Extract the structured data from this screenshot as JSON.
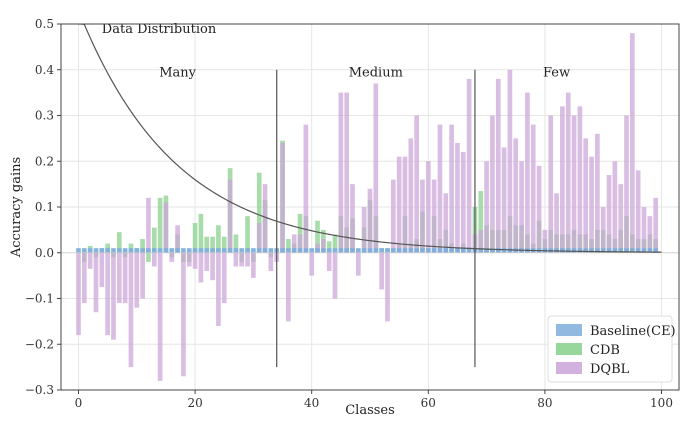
{
  "chart_data": {
    "type": "bar",
    "xlabel": "Classes",
    "ylabel": "Accuracy gains",
    "xlim": [
      -3,
      103
    ],
    "ylim": [
      -0.3,
      0.5
    ],
    "xticks": [
      0,
      20,
      40,
      60,
      80,
      100
    ],
    "yticks": [
      -0.3,
      -0.2,
      -0.1,
      0.0,
      0.1,
      0.2,
      0.3,
      0.4,
      0.5
    ],
    "grid": true,
    "legend_position": "bottom-right",
    "annotations": {
      "curve_label": "Data Distribution",
      "regions": [
        {
          "label": "Many",
          "x": 17
        },
        {
          "label": "Medium",
          "x": 51
        },
        {
          "label": "Few",
          "x": 82
        }
      ],
      "dividers": [
        34,
        68
      ]
    },
    "curve": {
      "name": "Data Distribution",
      "y_at_0": 0.53,
      "decay": 0.06,
      "floor": 0.0
    },
    "series": [
      {
        "name": "Baseline(CE)",
        "color": "#7faedc",
        "values": [
          0.01,
          0.01,
          0.01,
          0.01,
          0.01,
          0.01,
          0.01,
          0.01,
          0.01,
          0.01,
          0.01,
          0.01,
          0.01,
          0.01,
          0.01,
          0.01,
          0.01,
          0.01,
          0.01,
          0.01,
          0.01,
          0.01,
          0.01,
          0.01,
          0.01,
          0.01,
          0.01,
          0.01,
          0.01,
          0.01,
          0.01,
          0.01,
          0.01,
          0.01,
          0.01,
          0.01,
          0.01,
          0.01,
          0.01,
          0.01,
          0.01,
          0.01,
          0.01,
          0.01,
          0.01,
          0.01,
          0.01,
          0.01,
          0.01,
          0.01,
          0.01,
          0.01,
          0.01,
          0.01,
          0.01,
          0.01,
          0.01,
          0.01,
          0.01,
          0.01,
          0.01,
          0.01,
          0.01,
          0.01,
          0.01,
          0.01,
          0.01,
          0.01,
          0.01,
          0.01,
          0.01,
          0.01,
          0.01,
          0.01,
          0.01,
          0.01,
          0.01,
          0.01,
          0.01,
          0.01,
          0.01,
          0.01,
          0.01,
          0.01,
          0.01,
          0.01,
          0.01,
          0.01,
          0.01,
          0.01,
          0.01,
          0.01,
          0.01,
          0.01,
          0.01,
          0.01,
          0.01,
          0.01,
          0.01,
          0.01
        ]
      },
      {
        "name": "CDB",
        "color": "#86d08a",
        "values": [
          0,
          -0.02,
          0.015,
          -0.01,
          0.01,
          0.02,
          -0.01,
          0.045,
          -0.01,
          0.02,
          0.01,
          0.03,
          -0.02,
          0.055,
          0.12,
          0.125,
          -0.01,
          0.04,
          -0.02,
          -0.02,
          0.065,
          0.085,
          0.035,
          0.035,
          0.06,
          0.035,
          0.185,
          0.04,
          -0.02,
          0.08,
          -0.02,
          0.175,
          0.115,
          -0.01,
          0,
          0.245,
          0.03,
          0.02,
          0.085,
          0.08,
          0,
          0.07,
          0.05,
          0.025,
          0.04,
          0.08,
          0.055,
          0.075,
          0,
          0.055,
          0.115,
          0.08,
          0.01,
          0.01,
          0,
          0.02,
          0.08,
          0.02,
          0.03,
          0.09,
          0,
          0.08,
          0.03,
          0.05,
          0.02,
          0,
          0.02,
          0,
          0.1,
          0.135,
          0.06,
          0.05,
          0.05,
          0.05,
          0.08,
          0.06,
          0.06,
          0.04,
          0.02,
          0.07,
          0.03,
          0.05,
          0.04,
          0.04,
          0.04,
          0.05,
          0.04,
          0.04,
          0.03,
          0.05,
          0.05,
          0.04,
          0.03,
          0.05,
          0.08,
          0.04,
          0.03,
          0.03,
          0.04,
          0.03
        ]
      },
      {
        "name": "DQBL",
        "color": "#cba3d8",
        "values": [
          -0.18,
          -0.11,
          -0.035,
          -0.13,
          -0.075,
          -0.18,
          -0.19,
          -0.11,
          -0.11,
          -0.25,
          -0.12,
          -0.1,
          0.12,
          -0.03,
          -0.28,
          0.11,
          -0.02,
          0.06,
          -0.27,
          -0.03,
          -0.035,
          -0.065,
          -0.04,
          -0.06,
          -0.16,
          -0.11,
          0.16,
          -0.03,
          -0.03,
          -0.03,
          -0.055,
          0.065,
          0.15,
          -0.04,
          -0.02,
          0.24,
          -0.15,
          0.04,
          0.04,
          0.28,
          -0.05,
          0.02,
          0.03,
          -0.04,
          -0.1,
          0.35,
          0.35,
          0.15,
          -0.05,
          0.1,
          0.14,
          0.37,
          -0.08,
          -0.15,
          0.16,
          0.21,
          0.21,
          0.25,
          0.3,
          0.16,
          0.2,
          0.16,
          0.28,
          0.13,
          0.28,
          0.24,
          0.22,
          0.38,
          0.04,
          0.05,
          0.2,
          0.3,
          0.38,
          0.23,
          0.4,
          0.25,
          0.2,
          0.35,
          0.28,
          0.19,
          0.05,
          0.3,
          0.13,
          0.32,
          0.35,
          0.3,
          0.32,
          0.25,
          0.21,
          0.26,
          0.1,
          0.17,
          0.2,
          0.15,
          0.3,
          0.48,
          0.18,
          0.1,
          0.08,
          0.12
        ]
      }
    ]
  }
}
